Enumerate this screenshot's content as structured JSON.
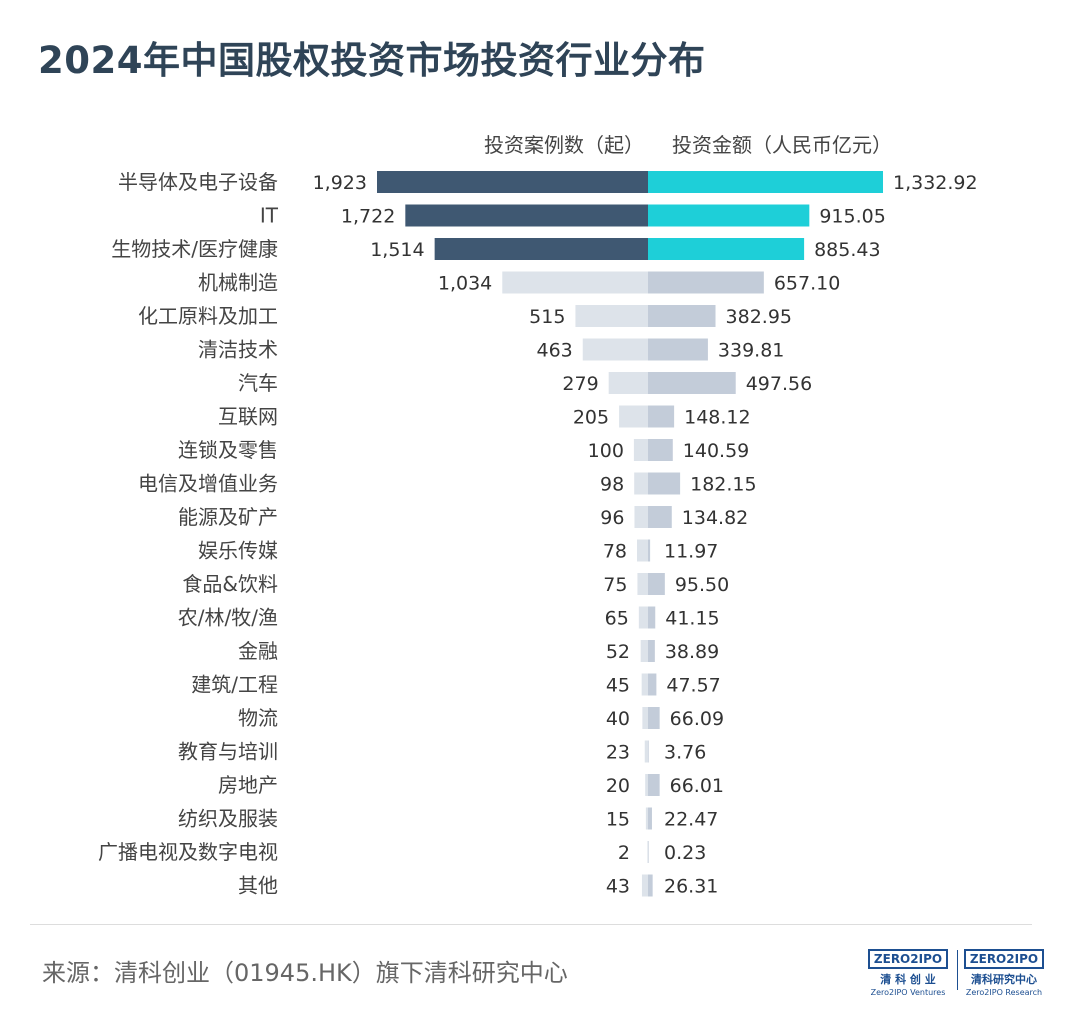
{
  "title": "2024年中国股权投资市场投资行业分布",
  "source": "来源：清科创业（01945.HK）旗下清科研究中心",
  "logos": [
    {
      "mark": "ZERO2IPO",
      "cn": "清 科 创 业",
      "en": "Zero2IPO Ventures"
    },
    {
      "mark": "ZERO2IPO",
      "cn": "清科研究中心",
      "en": "Zero2IPO Research"
    }
  ],
  "chart_data": {
    "type": "bar",
    "orientation": "horizontal-diverging",
    "series": [
      {
        "name": "投资案例数（起）",
        "values": [
          1923,
          1722,
          1514,
          1034,
          515,
          463,
          279,
          205,
          100,
          98,
          96,
          78,
          75,
          65,
          52,
          45,
          40,
          23,
          20,
          15,
          2,
          43
        ],
        "labels": [
          "1,923",
          "1,722",
          "1,514",
          "1,034",
          "515",
          "463",
          "279",
          "205",
          "100",
          "98",
          "96",
          "78",
          "75",
          "65",
          "52",
          "45",
          "40",
          "23",
          "20",
          "15",
          "2",
          "43"
        ]
      },
      {
        "name": "投资金额（人民币亿元）",
        "values": [
          1332.92,
          915.05,
          885.43,
          657.1,
          382.95,
          339.81,
          497.56,
          148.12,
          140.59,
          182.15,
          134.82,
          11.97,
          95.5,
          41.15,
          38.89,
          47.57,
          66.09,
          3.76,
          66.01,
          22.47,
          0.23,
          26.31
        ],
        "labels": [
          "1,332.92",
          "915.05",
          "885.43",
          "657.10",
          "382.95",
          "339.81",
          "497.56",
          "148.12",
          "140.59",
          "182.15",
          "134.82",
          "11.97",
          "95.50",
          "41.15",
          "38.89",
          "47.57",
          "66.09",
          "3.76",
          "66.01",
          "22.47",
          "0.23",
          "26.31"
        ]
      }
    ],
    "categories": [
      "半导体及电子设备",
      "IT",
      "生物技术/医疗健康",
      "机械制造",
      "化工原料及加工",
      "清洁技术",
      "汽车",
      "互联网",
      "连锁及零售",
      "电信及增值业务",
      "能源及矿产",
      "娱乐传媒",
      "食品&饮料",
      "农/林/牧/渔",
      "金融",
      "建筑/工程",
      "物流",
      "教育与培训",
      "房地产",
      "纺织及服装",
      "广播电视及数字电视",
      "其他"
    ],
    "highlight_top": 3,
    "colors": {
      "count_highlight": "#3f5872",
      "amount_highlight": "#1ecfd8",
      "count_other": "#dde3ea",
      "amount_other": "#c3ccd9"
    },
    "count_max": 1923,
    "amount_max": 1332.92
  }
}
